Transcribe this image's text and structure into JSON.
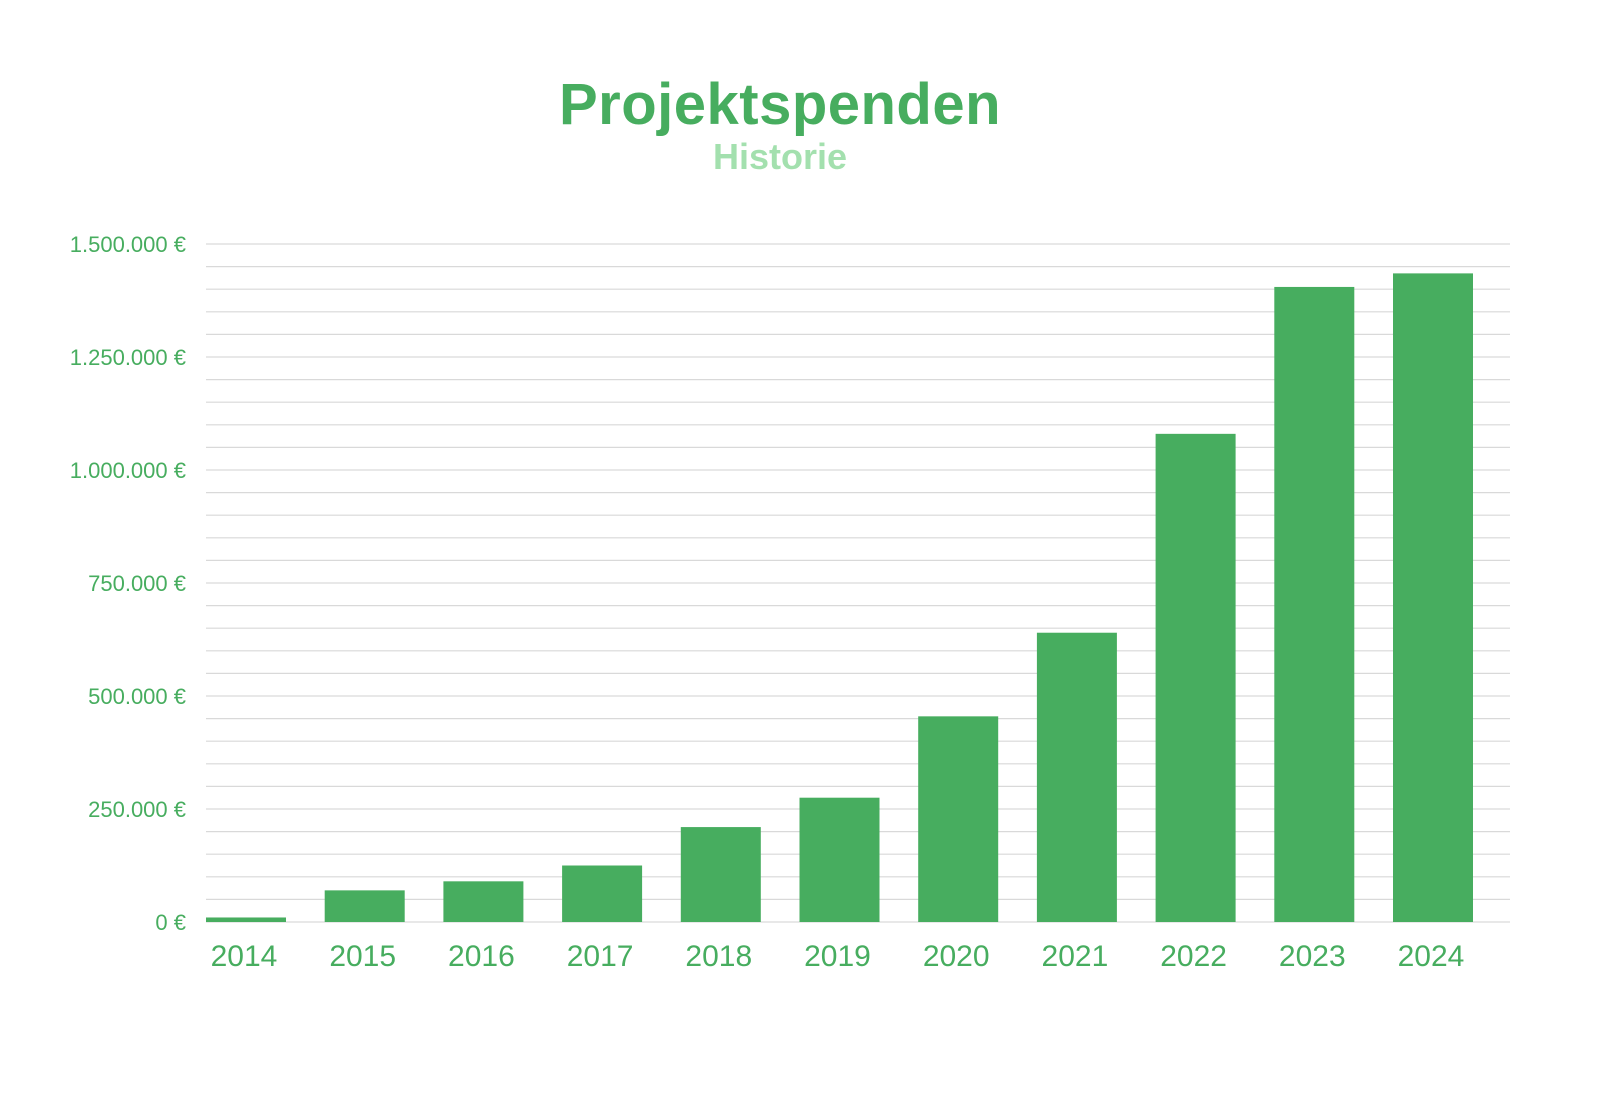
{
  "header": {
    "title": "Projektspenden",
    "subtitle": "Historie"
  },
  "colors": {
    "bar": "#47ad5f",
    "title": "#47ad5f",
    "subtitle": "#a3e0ae",
    "axis_text": "#47ad5f",
    "grid": "#d9d9d9"
  },
  "chart_data": {
    "type": "bar",
    "title": "Projektspenden",
    "subtitle": "Historie",
    "xlabel": "",
    "ylabel": "",
    "categories": [
      "2014",
      "2015",
      "2016",
      "2017",
      "2018",
      "2019",
      "2020",
      "2021",
      "2022",
      "2023",
      "2024"
    ],
    "values": [
      10000,
      70000,
      90000,
      125000,
      210000,
      275000,
      455000,
      640000,
      1080000,
      1405000,
      1435000
    ],
    "ylim": [
      0,
      1500000
    ],
    "yticks": [
      0,
      250000,
      500000,
      750000,
      1000000,
      1250000,
      1500000
    ],
    "ytick_labels": [
      "0 €",
      "250.000 €",
      "500.000 €",
      "750.000 €",
      "1.000.000 €",
      "1.250.000 €",
      "1.500.000 €"
    ],
    "minor_grid_step": 50000,
    "grid": true,
    "legend": "none"
  }
}
